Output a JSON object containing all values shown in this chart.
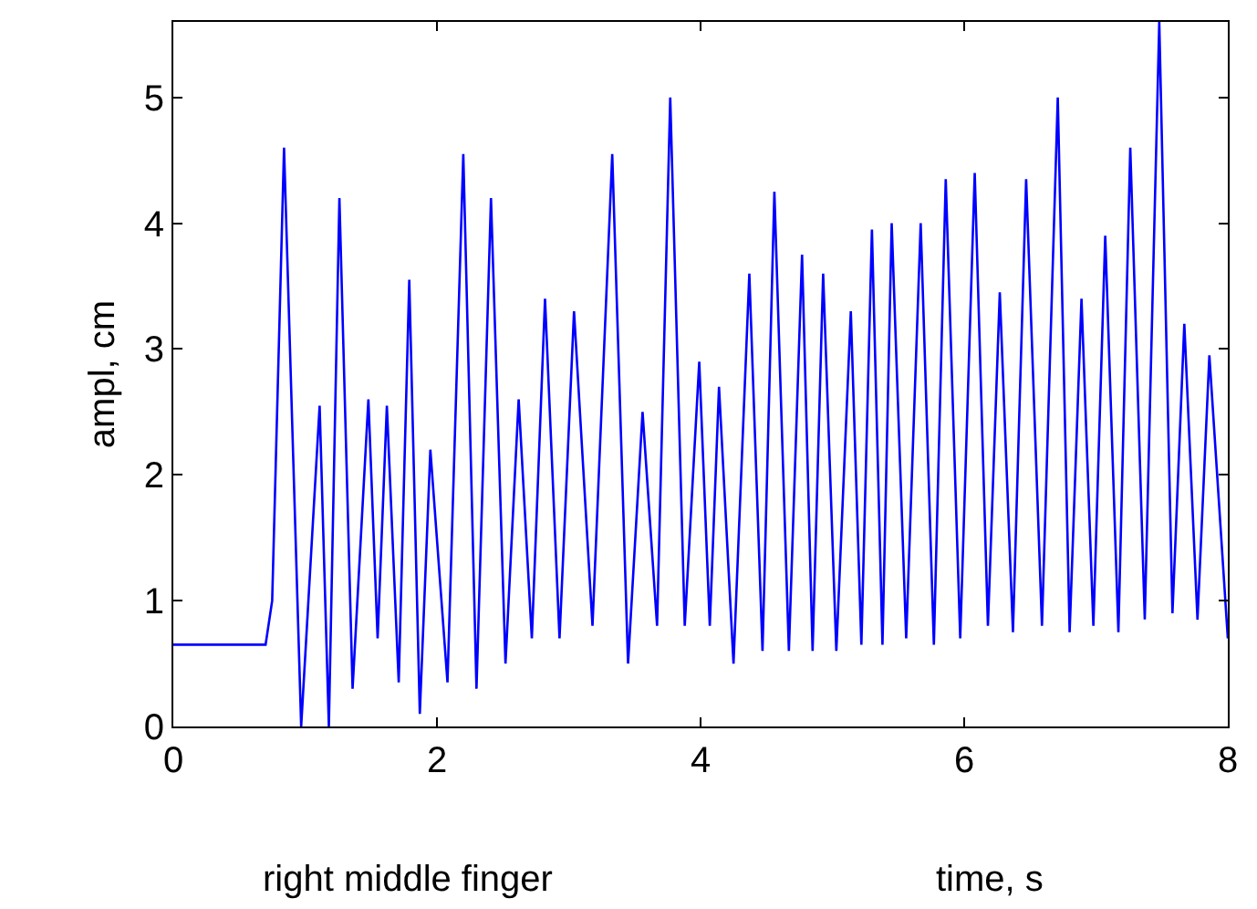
{
  "chart_data": {
    "type": "line",
    "xlabel": "time, s",
    "ylabel": "ampl, cm",
    "annotations": [
      "right middle finger"
    ],
    "x": [
      0,
      0.7,
      0.75,
      0.84,
      0.97,
      1.11,
      1.18,
      1.26,
      1.36,
      1.48,
      1.55,
      1.62,
      1.71,
      1.79,
      1.87,
      1.95,
      2.08,
      2.2,
      2.3,
      2.41,
      2.52,
      2.62,
      2.72,
      2.82,
      2.93,
      3.04,
      3.18,
      3.33,
      3.45,
      3.56,
      3.67,
      3.77,
      3.88,
      3.99,
      4.07,
      4.14,
      4.25,
      4.37,
      4.47,
      4.56,
      4.67,
      4.77,
      4.85,
      4.93,
      5.03,
      5.14,
      5.22,
      5.3,
      5.38,
      5.45,
      5.56,
      5.67,
      5.77,
      5.86,
      5.97,
      6.08,
      6.18,
      6.27,
      6.37,
      6.47,
      6.59,
      6.71,
      6.8,
      6.89,
      6.98,
      7.07,
      7.17,
      7.26,
      7.37,
      7.48,
      7.58,
      7.67,
      7.77,
      7.86,
      8.0
    ],
    "series": [
      {
        "color": "#0000ff",
        "values": [
          0.65,
          0.65,
          1.0,
          4.6,
          0.0,
          2.55,
          0.0,
          4.2,
          0.3,
          2.6,
          0.7,
          2.55,
          0.35,
          3.55,
          0.1,
          2.2,
          0.35,
          4.55,
          0.3,
          4.2,
          0.5,
          2.6,
          0.7,
          3.4,
          0.7,
          3.3,
          0.8,
          4.55,
          0.5,
          2.5,
          0.8,
          5.0,
          0.8,
          2.9,
          0.8,
          2.7,
          0.5,
          3.6,
          0.6,
          4.25,
          0.6,
          3.75,
          0.6,
          3.6,
          0.6,
          3.3,
          0.65,
          3.95,
          0.65,
          4.0,
          0.7,
          4.0,
          0.65,
          4.35,
          0.7,
          4.4,
          0.8,
          3.45,
          0.75,
          4.35,
          0.8,
          5.0,
          0.75,
          3.4,
          0.8,
          3.9,
          0.75,
          4.6,
          0.85,
          5.6,
          0.9,
          3.2,
          0.85,
          2.95,
          0.7
        ]
      }
    ],
    "xlim": [
      0,
      8
    ],
    "xticks": [
      0,
      2,
      4,
      6,
      8
    ],
    "ylim": [
      0,
      5.6
    ],
    "yticks": [
      0,
      1,
      2,
      3,
      4,
      5
    ],
    "marker": "none",
    "line_style": "solid"
  }
}
